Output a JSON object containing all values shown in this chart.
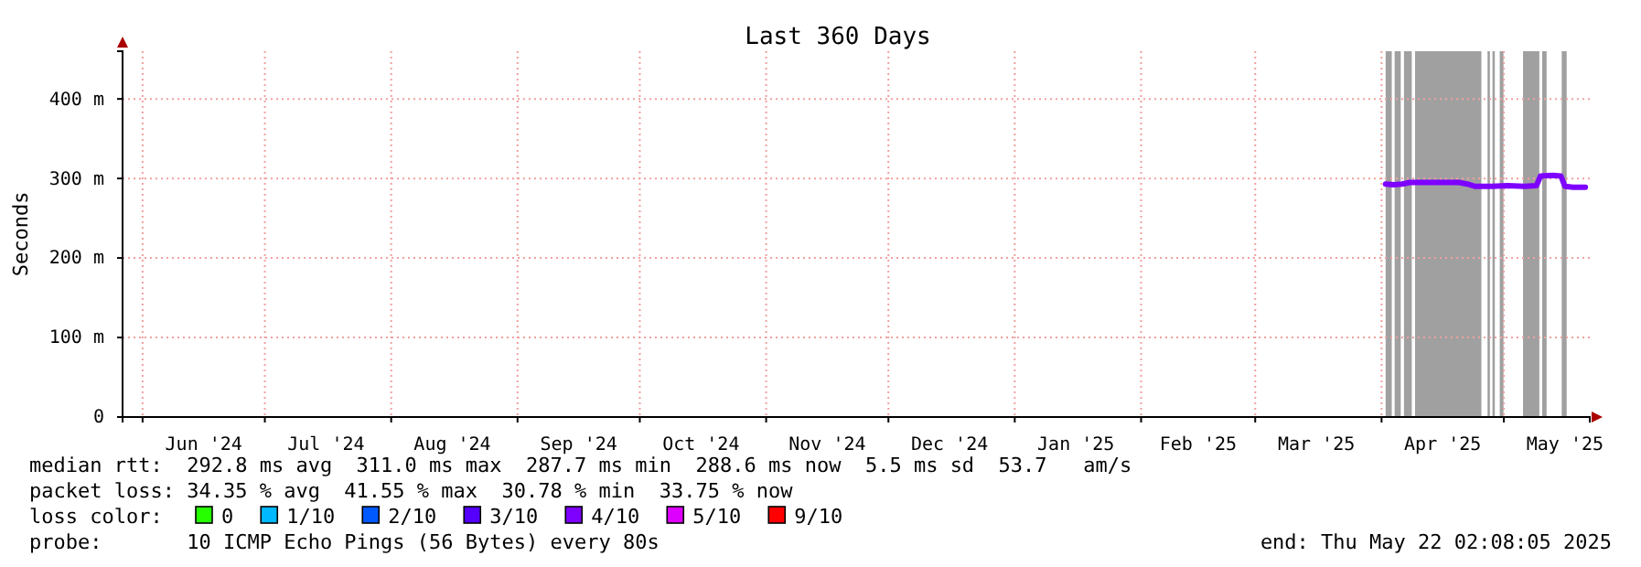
{
  "chart_data": {
    "type": "line",
    "title": "Last 360 Days",
    "ylabel": "Seconds",
    "xlim": [
      "2024-05-27T02:08",
      "2025-05-22T02:08"
    ],
    "xticks": [
      {
        "value": "2024-06-01",
        "label": null
      },
      {
        "value": "2024-06-16",
        "label": "Jun '24"
      },
      {
        "value": "2024-07-01",
        "label": null
      },
      {
        "value": "2024-07-16",
        "label": "Jul '24"
      },
      {
        "value": "2024-08-01",
        "label": null
      },
      {
        "value": "2024-08-16",
        "label": "Aug '24"
      },
      {
        "value": "2024-09-01",
        "label": null
      },
      {
        "value": "2024-09-16",
        "label": "Sep '24"
      },
      {
        "value": "2024-10-01",
        "label": null
      },
      {
        "value": "2024-10-16",
        "label": "Oct '24"
      },
      {
        "value": "2024-11-01",
        "label": null
      },
      {
        "value": "2024-11-16",
        "label": "Nov '24"
      },
      {
        "value": "2024-12-01",
        "label": null
      },
      {
        "value": "2024-12-16",
        "label": "Dec '24"
      },
      {
        "value": "2025-01-01",
        "label": null
      },
      {
        "value": "2025-01-16",
        "label": "Jan '25"
      },
      {
        "value": "2025-02-01",
        "label": null
      },
      {
        "value": "2025-02-15",
        "label": "Feb '25"
      },
      {
        "value": "2025-03-01",
        "label": null
      },
      {
        "value": "2025-03-16",
        "label": "Mar '25"
      },
      {
        "value": "2025-04-01",
        "label": null
      },
      {
        "value": "2025-04-16",
        "label": "Apr '25"
      },
      {
        "value": "2025-05-01",
        "label": null
      },
      {
        "value": "2025-05-16",
        "label": "May '25"
      }
    ],
    "ylim": [
      0,
      460
    ],
    "yticks": [
      0,
      {
        "value": 100,
        "label": "100 m"
      },
      {
        "value": 200,
        "label": "200 m"
      },
      {
        "value": 300,
        "label": "300 m"
      },
      {
        "value": 400,
        "label": "400 m"
      }
    ],
    "grid": true,
    "legend": "bottom",
    "legend_title": "loss color:",
    "series": [
      {
        "name": "0",
        "color": "#26ff00"
      },
      {
        "name": "1/10",
        "color": "#00b8ff"
      },
      {
        "name": "2/10",
        "color": "#0059ff"
      },
      {
        "name": "3/10",
        "color": "#5500ff"
      },
      {
        "name": "4/10",
        "color": "#7e00ff",
        "x": [
          "2025-04-02",
          "2025-04-04",
          "2025-04-06",
          "2025-04-08",
          "2025-04-12",
          "2025-04-16",
          "2025-04-20",
          "2025-04-22",
          "2025-04-24",
          "2025-04-28",
          "2025-05-02",
          "2025-05-06",
          "2025-05-09",
          "2025-05-10",
          "2025-05-13",
          "2025-05-15",
          "2025-05-16",
          "2025-05-18",
          "2025-05-21"
        ],
        "values": [
          293,
          292,
          293,
          295,
          295,
          295,
          295,
          293,
          290,
          290,
          291,
          290,
          291,
          303,
          304,
          303,
          290,
          289,
          289
        ]
      },
      {
        "name": "5/10",
        "color": "#dd00ff"
      },
      {
        "name": "9/10",
        "color": "#ff0000"
      }
    ],
    "bands": [
      {
        "axis": "x",
        "from": "2025-04-02T00:00",
        "to": "2025-04-03T12:00",
        "color": "#a0a0a0"
      },
      {
        "axis": "x",
        "from": "2025-04-04T05:00",
        "to": "2025-04-05T17:00",
        "color": "#a0a0a0"
      },
      {
        "axis": "x",
        "from": "2025-04-06T12:00",
        "to": "2025-04-08T10:00",
        "color": "#a0a0a0"
      },
      {
        "axis": "x",
        "from": "2025-04-09T05:00",
        "to": "2025-04-25T12:00",
        "color": "#a0a0a0"
      },
      {
        "axis": "x",
        "from": "2025-04-27T00:00",
        "to": "2025-04-27T14:00",
        "color": "#a0a0a0"
      },
      {
        "axis": "x",
        "from": "2025-04-28T05:00",
        "to": "2025-04-28T19:00",
        "color": "#a0a0a0"
      },
      {
        "axis": "x",
        "from": "2025-04-30T00:00",
        "to": "2025-04-30T22:00",
        "color": "#a0a0a0"
      },
      {
        "axis": "x",
        "from": "2025-05-05T17:00",
        "to": "2025-05-09T17:00",
        "color": "#a0a0a0"
      },
      {
        "axis": "x",
        "from": "2025-05-10T10:00",
        "to": "2025-05-11T12:00",
        "color": "#a0a0a0"
      },
      {
        "axis": "x",
        "from": "2025-05-15T05:00",
        "to": "2025-05-16T10:00",
        "color": "#a0a0a0"
      }
    ],
    "annotations": [
      "median rtt:  292.8 ms avg  311.0 ms max  287.7 ms min  288.6 ms now  5.5 ms sd  53.7   am/s",
      "packet loss: 34.35 % avg  41.55 % max  30.78 % min  33.75 % now",
      "probe:       10 ICMP Echo Pings (56 Bytes) every 80s",
      "end: Thu May 22 02:08:05 2025"
    ]
  }
}
